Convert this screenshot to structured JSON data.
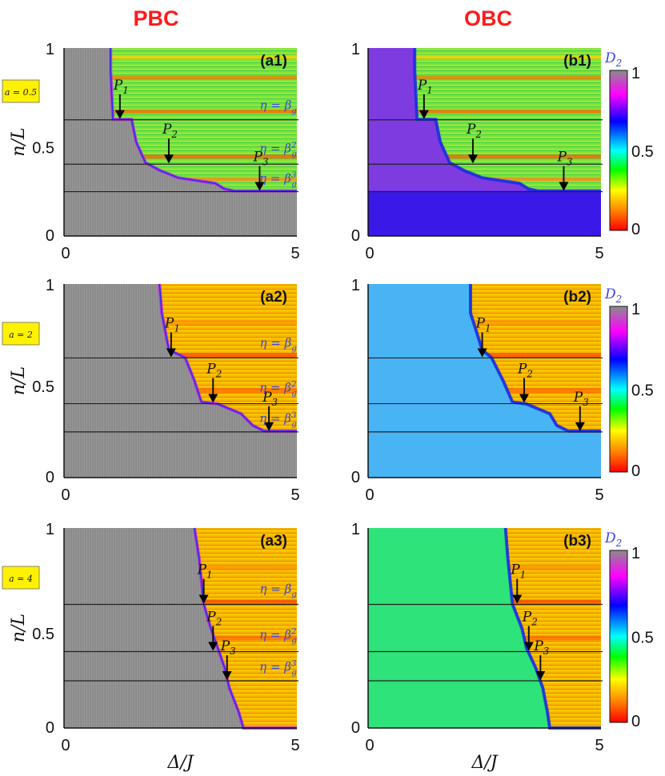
{
  "figure": {
    "column_titles": [
      "PBC",
      "OBC"
    ],
    "xlabel": "Δ/J",
    "ylabel": "n/L",
    "xticks": [
      "0",
      "5"
    ],
    "yticks": [
      "0",
      "0.5",
      "1"
    ],
    "colorbar": {
      "label": "D",
      "label_sub": "2",
      "ticks": [
        "1",
        "0.5",
        "0"
      ]
    }
  },
  "colors": {
    "title_red": "#ff1a1a",
    "annotation_blue": "#3b46d6",
    "badge_yellow": "#fff200",
    "gray_region": "#8c8c8c"
  },
  "chart_data": [
    {
      "type": "heatmap",
      "id": "a1",
      "panel_label": "(a1)",
      "row_label": "a = 0.5",
      "xlim": [
        0,
        5
      ],
      "ylim": [
        0,
        1
      ],
      "boundary": [
        [
          1,
          1.0
        ],
        [
          1,
          0.88
        ],
        [
          1.05,
          0.62
        ],
        [
          1.45,
          0.62
        ],
        [
          1.55,
          0.5
        ],
        [
          1.75,
          0.39
        ],
        [
          2.05,
          0.35
        ],
        [
          2.45,
          0.31
        ],
        [
          3.25,
          0.28
        ],
        [
          3.45,
          0.25
        ],
        [
          3.65,
          0.24
        ],
        [
          5,
          0.24
        ]
      ],
      "phase_lines": [
        0.618,
        0.382,
        0.236
      ],
      "markers": [
        {
          "label": "P",
          "sub": "1",
          "x": 1.2,
          "y": 0.618
        },
        {
          "label": "P",
          "sub": "2",
          "x": 2.25,
          "y": 0.382
        },
        {
          "label": "P",
          "sub": "3",
          "x": 4.2,
          "y": 0.236
        }
      ],
      "eta_labels": [
        {
          "base": "η = β",
          "sub": "g",
          "sup": "",
          "y": 0.7
        },
        {
          "base": "η = β",
          "sub": "g",
          "sup": "2",
          "y": 0.47
        },
        {
          "base": "η = β",
          "sub": "g",
          "sup": "3",
          "y": 0.31
        }
      ]
    },
    {
      "type": "heatmap",
      "id": "b1",
      "panel_label": "(b1)",
      "row_label": "a = 0.5",
      "xlim": [
        0,
        5
      ],
      "ylim": [
        0,
        1
      ],
      "boundary": [
        [
          1,
          1.0
        ],
        [
          1,
          0.88
        ],
        [
          1.05,
          0.62
        ],
        [
          1.45,
          0.62
        ],
        [
          1.55,
          0.5
        ],
        [
          1.75,
          0.39
        ],
        [
          2.05,
          0.35
        ],
        [
          2.45,
          0.31
        ],
        [
          3.25,
          0.28
        ],
        [
          3.45,
          0.25
        ],
        [
          3.65,
          0.24
        ],
        [
          5,
          0.24
        ]
      ],
      "phase_lines": [
        0.618,
        0.382,
        0.236
      ],
      "markers": [
        {
          "label": "P",
          "sub": "1",
          "x": 1.2,
          "y": 0.618
        },
        {
          "label": "P",
          "sub": "2",
          "x": 2.25,
          "y": 0.382
        },
        {
          "label": "P",
          "sub": "3",
          "x": 4.2,
          "y": 0.236
        }
      ]
    },
    {
      "type": "heatmap",
      "id": "a2",
      "panel_label": "(a2)",
      "row_label": "a = 2",
      "xlim": [
        0,
        5
      ],
      "ylim": [
        0,
        1
      ],
      "boundary": [
        [
          2.05,
          1.0
        ],
        [
          2.1,
          0.85
        ],
        [
          2.25,
          0.66
        ],
        [
          2.6,
          0.62
        ],
        [
          2.8,
          0.5
        ],
        [
          2.95,
          0.39
        ],
        [
          3.3,
          0.38
        ],
        [
          3.8,
          0.33
        ],
        [
          4.05,
          0.27
        ],
        [
          4.3,
          0.24
        ],
        [
          5,
          0.24
        ]
      ],
      "phase_lines": [
        0.618,
        0.382,
        0.236
      ],
      "markers": [
        {
          "label": "P",
          "sub": "1",
          "x": 2.3,
          "y": 0.618
        },
        {
          "label": "P",
          "sub": "2",
          "x": 3.2,
          "y": 0.382
        },
        {
          "label": "P",
          "sub": "3",
          "x": 4.4,
          "y": 0.236
        }
      ],
      "eta_labels": [
        {
          "base": "η = β",
          "sub": "g",
          "sup": "",
          "y": 0.7
        },
        {
          "base": "η = β",
          "sub": "g",
          "sup": "2",
          "y": 0.47
        },
        {
          "base": "η = β",
          "sub": "g",
          "sup": "3",
          "y": 0.31
        }
      ]
    },
    {
      "type": "heatmap",
      "id": "b2",
      "panel_label": "(b2)",
      "row_label": "a = 2",
      "xlim": [
        0,
        5
      ],
      "ylim": [
        0,
        1
      ],
      "boundary": [
        [
          2.2,
          1.0
        ],
        [
          2.2,
          0.85
        ],
        [
          2.45,
          0.66
        ],
        [
          2.65,
          0.62
        ],
        [
          2.9,
          0.5
        ],
        [
          3.1,
          0.39
        ],
        [
          3.4,
          0.38
        ],
        [
          3.9,
          0.33
        ],
        [
          4.05,
          0.27
        ],
        [
          4.3,
          0.24
        ],
        [
          5,
          0.24
        ]
      ],
      "phase_lines": [
        0.618,
        0.382,
        0.236
      ],
      "markers": [
        {
          "label": "P",
          "sub": "1",
          "x": 2.45,
          "y": 0.618
        },
        {
          "label": "P",
          "sub": "2",
          "x": 3.35,
          "y": 0.382
        },
        {
          "label": "P",
          "sub": "3",
          "x": 4.55,
          "y": 0.236
        }
      ]
    },
    {
      "type": "heatmap",
      "id": "a3",
      "panel_label": "(a3)",
      "row_label": "a = 4",
      "xlim": [
        0,
        5
      ],
      "ylim": [
        0,
        1
      ],
      "boundary": [
        [
          2.8,
          1.0
        ],
        [
          2.9,
          0.85
        ],
        [
          3.0,
          0.62
        ],
        [
          3.15,
          0.5
        ],
        [
          3.3,
          0.4
        ],
        [
          3.45,
          0.3
        ],
        [
          3.55,
          0.2
        ],
        [
          3.75,
          0.08
        ],
        [
          3.85,
          0.0
        ]
      ],
      "phase_lines": [
        0.618,
        0.382,
        0.236
      ],
      "markers": [
        {
          "label": "P",
          "sub": "1",
          "x": 3.0,
          "y": 0.618
        },
        {
          "label": "P",
          "sub": "2",
          "x": 3.2,
          "y": 0.382
        },
        {
          "label": "P",
          "sub": "3",
          "x": 3.5,
          "y": 0.236
        }
      ],
      "eta_labels": [
        {
          "base": "η = β",
          "sub": "g",
          "sup": "",
          "y": 0.7
        },
        {
          "base": "η = β",
          "sub": "g",
          "sup": "2",
          "y": 0.47
        },
        {
          "base": "η = β",
          "sub": "g",
          "sup": "3",
          "y": 0.31
        }
      ]
    },
    {
      "type": "heatmap",
      "id": "b3",
      "panel_label": "(b3)",
      "row_label": "a = 4",
      "xlim": [
        0,
        5
      ],
      "ylim": [
        0,
        1
      ],
      "boundary": [
        [
          2.95,
          1.0
        ],
        [
          3.0,
          0.85
        ],
        [
          3.1,
          0.62
        ],
        [
          3.3,
          0.5
        ],
        [
          3.4,
          0.4
        ],
        [
          3.6,
          0.3
        ],
        [
          3.75,
          0.2
        ],
        [
          3.85,
          0.08
        ],
        [
          3.9,
          0.0
        ]
      ],
      "phase_lines": [
        0.618,
        0.382,
        0.236
      ],
      "markers": [
        {
          "label": "P",
          "sub": "1",
          "x": 3.2,
          "y": 0.618
        },
        {
          "label": "P",
          "sub": "2",
          "x": 3.45,
          "y": 0.382
        },
        {
          "label": "P",
          "sub": "3",
          "x": 3.7,
          "y": 0.236
        }
      ]
    }
  ]
}
